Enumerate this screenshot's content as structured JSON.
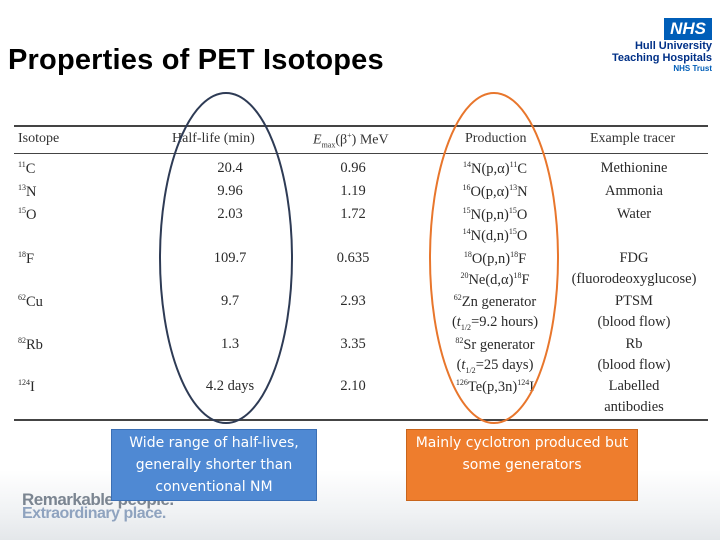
{
  "title": "Properties of PET Isotopes",
  "logo": {
    "badge": "NHS",
    "line1": "Hull University",
    "line2": "Teaching Hospitals",
    "line3": "NHS Trust"
  },
  "table": {
    "headers": [
      "Isotope",
      "Half-life (min)",
      "Emax(β+) MeV",
      "Production",
      "Example tracer"
    ],
    "rows": [
      {
        "isotope": "11C",
        "halflife": "20.4",
        "emax": "0.96",
        "production": [
          "14N(p,α)11C"
        ],
        "tracer": [
          "Methionine"
        ]
      },
      {
        "isotope": "13N",
        "halflife": "9.96",
        "emax": "1.19",
        "production": [
          "16O(p,α)13N"
        ],
        "tracer": [
          "Ammonia"
        ]
      },
      {
        "isotope": "15O",
        "halflife": "2.03",
        "emax": "1.72",
        "production": [
          "15N(p,n)15O",
          "14N(d,n)15O"
        ],
        "tracer": [
          "Water"
        ]
      },
      {
        "isotope": "18F",
        "halflife": "109.7",
        "emax": "0.635",
        "production": [
          "18O(p,n)18F",
          "20Ne(d,α)18F"
        ],
        "tracer": [
          "FDG",
          "(fluorodeoxyglucose)"
        ]
      },
      {
        "isotope": "62Cu",
        "halflife": "9.7",
        "emax": "2.93",
        "production": [
          "62Zn generator",
          "(t1/2=9.2 hours)"
        ],
        "tracer": [
          "PTSM",
          "(blood flow)"
        ]
      },
      {
        "isotope": "82Rb",
        "halflife": "1.3",
        "emax": "3.35",
        "production": [
          "82Sr generator",
          "(t1/2=25 days)"
        ],
        "tracer": [
          "Rb",
          "(blood flow)"
        ]
      },
      {
        "isotope": "124I",
        "halflife": "4.2 days",
        "emax": "2.10",
        "production": [
          "126Te(p,3n)124I"
        ],
        "tracer": [
          "Labelled",
          "antibodies"
        ]
      }
    ]
  },
  "notes": {
    "halflife_note": "Wide range of half-lives, generally shorter than conventional NM",
    "production_note": "Mainly cyclotron produced but some generators"
  },
  "footer": {
    "slogan_line1": "Remarkable people.",
    "slogan_line2": "Extraordinary place."
  },
  "colors": {
    "nhs_blue": "#005eb8",
    "note_blue": "#4f89d3",
    "note_orange": "#ee7d2d",
    "oval_dark": "#2e3b55",
    "oval_orange": "#e8762c"
  }
}
